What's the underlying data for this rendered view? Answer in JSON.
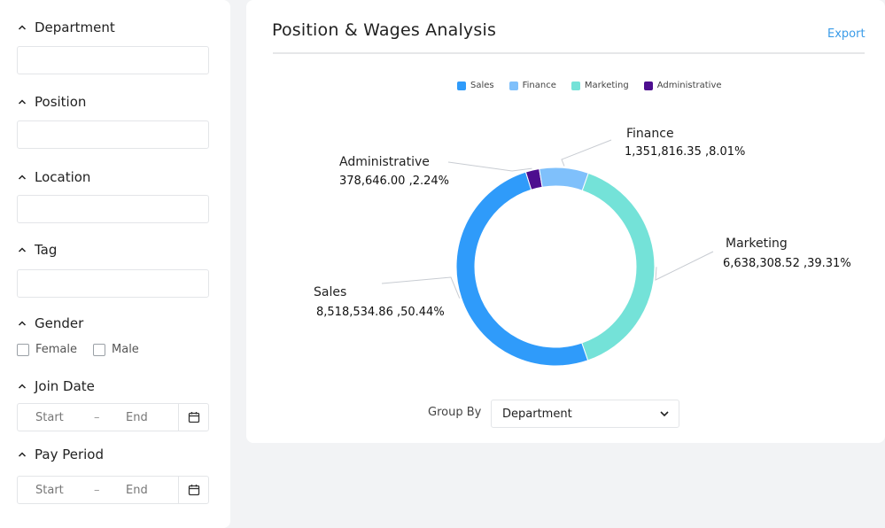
{
  "filters": {
    "department": {
      "label": "Department",
      "value": ""
    },
    "position": {
      "label": "Position",
      "value": ""
    },
    "location": {
      "label": "Location",
      "value": ""
    },
    "tag": {
      "label": "Tag",
      "value": ""
    },
    "gender": {
      "label": "Gender",
      "options": [
        "Female",
        "Male"
      ]
    },
    "join_date": {
      "label": "Join Date",
      "start": "Start",
      "dash": "–",
      "end": "End"
    },
    "pay_period": {
      "label": "Pay Period",
      "start": "Start",
      "dash": "–",
      "end": "End"
    }
  },
  "card": {
    "title": "Position & Wages Analysis",
    "export_label": "Export"
  },
  "chart_data": {
    "type": "pie",
    "variant": "donut",
    "legend_position": "top",
    "slices": [
      {
        "name": "Sales",
        "value": 8518534.86,
        "value_label": "8,518,534.86 ,50.44%",
        "percent": 50.44,
        "color": "#2f9bfa"
      },
      {
        "name": "Finance",
        "value": 1351816.35,
        "value_label": "1,351,816.35 ,8.01%",
        "percent": 8.01,
        "color": "#7fc0fb"
      },
      {
        "name": "Marketing",
        "value": 6638308.52,
        "value_label": "6,638,308.52 ,39.31%",
        "percent": 39.31,
        "color": "#74e2d8"
      },
      {
        "name": "Administrative",
        "value": 378646.0,
        "value_label": "378,646.00 ,2.24%",
        "percent": 2.24,
        "color": "#4d0e8f"
      }
    ],
    "draw_order": [
      "Administrative",
      "Finance",
      "Marketing",
      "Sales"
    ]
  },
  "groupby": {
    "label": "Group By",
    "selected": "Department"
  },
  "icons": {
    "section_toggle": "chevron-up-icon",
    "calendar": "calendar-icon",
    "dropdown": "chevron-down-icon"
  }
}
